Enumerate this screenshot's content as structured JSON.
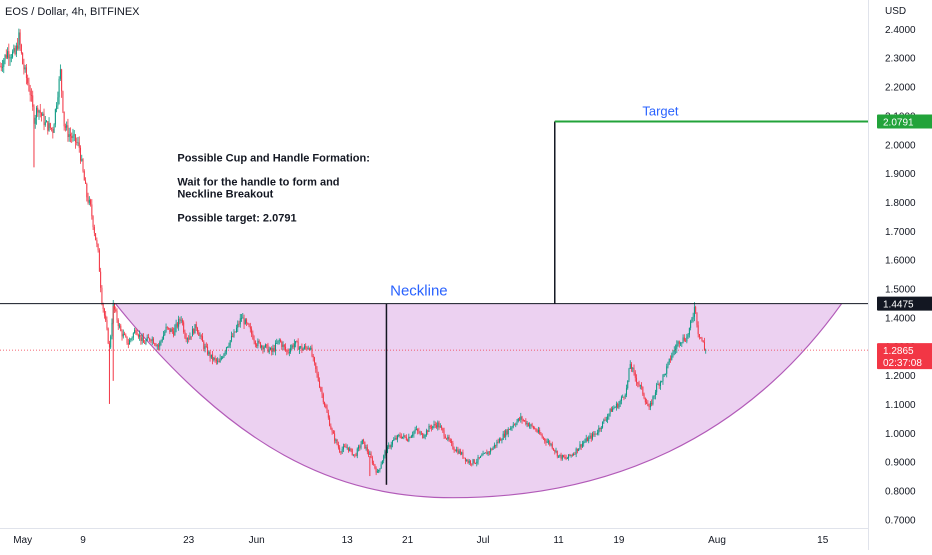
{
  "chart_data": {
    "type": "candlestick",
    "title": "EOS / Dollar, 4h, BITFINEX",
    "currency": "USD",
    "ylim": [
      0.67,
      2.5
    ],
    "y_ticks": [
      "2.4000",
      "2.3000",
      "2.2000",
      "2.1000",
      "2.0000",
      "1.9000",
      "1.8000",
      "1.7000",
      "1.6000",
      "1.5000",
      "1.4000",
      "1.3000",
      "1.2000",
      "1.1000",
      "1.0000",
      "0.9000",
      "0.8000",
      "0.7000"
    ],
    "x_ticks": [
      {
        "label": "May",
        "x": 0
      },
      {
        "label": "9",
        "x": 8
      },
      {
        "label": "23",
        "x": 22
      },
      {
        "label": "Jun",
        "x": 31
      },
      {
        "label": "13",
        "x": 43
      },
      {
        "label": "21",
        "x": 51
      },
      {
        "label": "Jul",
        "x": 61
      },
      {
        "label": "11",
        "x": 71
      },
      {
        "label": "19",
        "x": 79
      },
      {
        "label": "Aug",
        "x": 92
      },
      {
        "label": "15",
        "x": 106
      }
    ],
    "day_range": [
      -3,
      112
    ],
    "price_path": [
      [
        -3,
        2.27
      ],
      [
        -2,
        2.32
      ],
      [
        -1,
        2.31
      ],
      [
        -0.5,
        2.37
      ],
      [
        0,
        2.28
      ],
      [
        1,
        2.18
      ],
      [
        1.5,
        2.09
      ],
      [
        2,
        2.13
      ],
      [
        3,
        2.07
      ],
      [
        4,
        2.05
      ],
      [
        5,
        2.25
      ],
      [
        5.5,
        2.07
      ],
      [
        6,
        2.04
      ],
      [
        7,
        2.01
      ],
      [
        7.5,
        1.99
      ],
      [
        8,
        1.9
      ],
      [
        8.5,
        1.82
      ],
      [
        9,
        1.78
      ],
      [
        9.5,
        1.7
      ],
      [
        10,
        1.62
      ],
      [
        10.5,
        1.46
      ],
      [
        11,
        1.38
      ],
      [
        11.5,
        1.29
      ],
      [
        12,
        1.44
      ],
      [
        13,
        1.35
      ],
      [
        14,
        1.31
      ],
      [
        15,
        1.36
      ],
      [
        16,
        1.31
      ],
      [
        17,
        1.33
      ],
      [
        18,
        1.3
      ],
      [
        19,
        1.36
      ],
      [
        20,
        1.35
      ],
      [
        21,
        1.4
      ],
      [
        21.5,
        1.34
      ],
      [
        22,
        1.33
      ],
      [
        23,
        1.37
      ],
      [
        24,
        1.3
      ],
      [
        25,
        1.26
      ],
      [
        26,
        1.24
      ],
      [
        27,
        1.3
      ],
      [
        28,
        1.34
      ],
      [
        29,
        1.4
      ],
      [
        30,
        1.36
      ],
      [
        31,
        1.31
      ],
      [
        32,
        1.3
      ],
      [
        33,
        1.28
      ],
      [
        34,
        1.32
      ],
      [
        35,
        1.28
      ],
      [
        36,
        1.31
      ],
      [
        37,
        1.29
      ],
      [
        38,
        1.3
      ],
      [
        39,
        1.2
      ],
      [
        40,
        1.1
      ],
      [
        41,
        1.0
      ],
      [
        42,
        0.94
      ],
      [
        43,
        0.95
      ],
      [
        44,
        0.92
      ],
      [
        45,
        0.97
      ],
      [
        46,
        0.92
      ],
      [
        47,
        0.86
      ],
      [
        48,
        0.93
      ],
      [
        49,
        0.97
      ],
      [
        50,
        0.99
      ],
      [
        51,
        0.98
      ],
      [
        52,
        1.01
      ],
      [
        53,
        0.99
      ],
      [
        54,
        1.02
      ],
      [
        55,
        1.03
      ],
      [
        56,
        0.99
      ],
      [
        57,
        0.95
      ],
      [
        58,
        0.93
      ],
      [
        59,
        0.9
      ],
      [
        60,
        0.9
      ],
      [
        61,
        0.92
      ],
      [
        62,
        0.94
      ],
      [
        63,
        0.97
      ],
      [
        64,
        1.0
      ],
      [
        65,
        1.03
      ],
      [
        66,
        1.05
      ],
      [
        67,
        1.03
      ],
      [
        68,
        1.01
      ],
      [
        69,
        0.98
      ],
      [
        70,
        0.96
      ],
      [
        71,
        0.92
      ],
      [
        72,
        0.91
      ],
      [
        73,
        0.93
      ],
      [
        74,
        0.96
      ],
      [
        75,
        0.98
      ],
      [
        76,
        1.0
      ],
      [
        77,
        1.04
      ],
      [
        78,
        1.08
      ],
      [
        79,
        1.1
      ],
      [
        80,
        1.15
      ],
      [
        80.5,
        1.24
      ],
      [
        81,
        1.2
      ],
      [
        82,
        1.15
      ],
      [
        83,
        1.08
      ],
      [
        84,
        1.16
      ],
      [
        85,
        1.2
      ],
      [
        86,
        1.27
      ],
      [
        87,
        1.32
      ],
      [
        88,
        1.33
      ],
      [
        88.8,
        1.4
      ],
      [
        89,
        1.4475
      ],
      [
        89.5,
        1.35
      ],
      [
        90,
        1.32
      ],
      [
        90.5,
        1.2865
      ]
    ],
    "wick_lows": [
      [
        1.5,
        1.92
      ],
      [
        11.5,
        1.1
      ],
      [
        12,
        1.18
      ],
      [
        46,
        0.85
      ],
      [
        48.2,
        0.82
      ]
    ],
    "current_price": {
      "value": 1.2865,
      "label": "1.2865",
      "countdown": "02:37:08",
      "color": "#f23645"
    },
    "neckline": {
      "value": 1.4475,
      "label": "1.4475",
      "caption": "Neckline",
      "x_start": 12.3,
      "x_end": 112
    },
    "target": {
      "value": 2.0791,
      "label": "2.0791",
      "caption": "Target",
      "x_start": 70.5,
      "x_end": 112,
      "color": "#22a33a"
    },
    "cup": {
      "left_x": 12.3,
      "right_x": 108.5,
      "top": 1.4475,
      "bottom_x": 57,
      "bottom": 0.775,
      "fill": "#e9c9ef",
      "stroke": "#b25bb8"
    },
    "measure_lines": [
      {
        "x": 48.2,
        "from": 1.4475,
        "to": 0.82
      },
      {
        "x": 70.5,
        "from": 1.4475,
        "to": 2.0791
      }
    ],
    "up_color": "#089981",
    "down_color": "#f23645",
    "annotation": {
      "lines": [
        "Possible Cup and Handle Formation:",
        "",
        "Wait for the handle to form and",
        "Neckline Breakout",
        "",
        "Possible target: 2.0791"
      ],
      "x": 20.5,
      "y": 1.94
    }
  }
}
